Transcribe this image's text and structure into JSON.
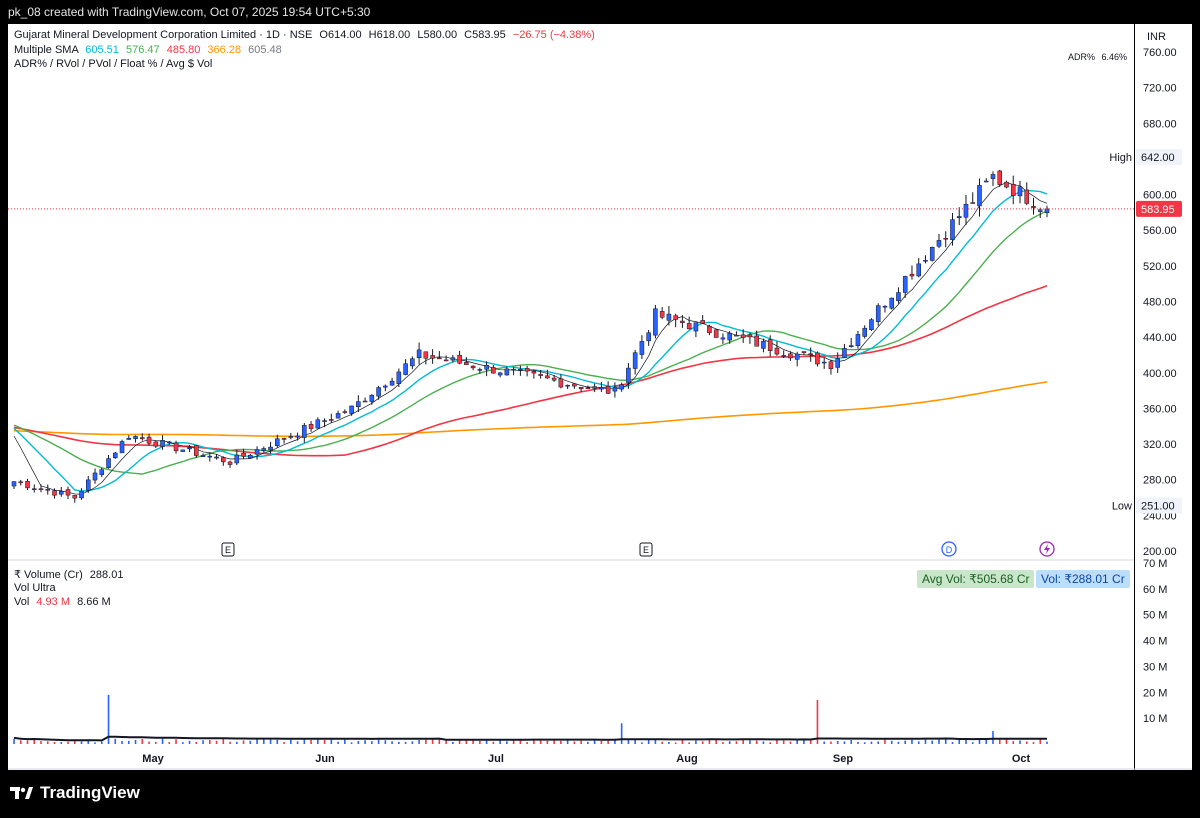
{
  "header": {
    "credit": "pk_08 created with TradingView.com, Oct 07, 2025 19:54 UTC+5:30"
  },
  "legend": {
    "symbol_line": "Gujarat Mineral Development Corporation Limited · 1D · NSE",
    "ohlc": {
      "o": "O614.00",
      "h": "H618.00",
      "l": "L580.00",
      "c": "C583.95",
      "chg": "−26.75 (−4.38%)"
    },
    "sma_label": "Multiple SMA",
    "sma_values": [
      {
        "value": "605.51",
        "color": "#00bcd4"
      },
      {
        "value": "576.47",
        "color": "#4caf50"
      },
      {
        "value": "485.80",
        "color": "#f23645"
      },
      {
        "value": "366.28",
        "color": "#ff9800"
      },
      {
        "value": "605.48",
        "color": "#787b86"
      }
    ],
    "indicator_line": "ADR% / RVol / PVol / Float % / Avg $ Vol",
    "adr_label": "ADR%",
    "adr_value": "6.46%"
  },
  "currency": "INR",
  "price_axis": {
    "ticks": [
      "760.00",
      "720.00",
      "680.00",
      "640.00",
      "600.00",
      "560.00",
      "520.00",
      "480.00",
      "440.00",
      "400.00",
      "360.00",
      "320.00",
      "280.00",
      "240.00",
      "200.00"
    ],
    "high_label": "High",
    "high_value": "642.00",
    "low_label": "Low",
    "low_value": "251.00",
    "last_value": "583.95"
  },
  "volume_pane": {
    "title": "₹ Volume (Cr)",
    "title_value": "288.01",
    "vol_ultra": "Vol Ultra",
    "vol_label": "Vol",
    "vol_value_1": "4.93 M",
    "vol_value_2": "8.66 M",
    "avg_badge": "Avg Vol: ₹505.68 Cr",
    "vol_badge": "Vol: ₹288.01 Cr",
    "ticks": [
      "70 M",
      "60 M",
      "50 M",
      "40 M",
      "30 M",
      "20 M",
      "10 M"
    ]
  },
  "time_axis": {
    "labels": [
      "May",
      "Jun",
      "Jul",
      "Aug",
      "Sep",
      "Oct"
    ]
  },
  "events": {
    "earnings_label": "E",
    "dividend_label": "D"
  },
  "brand": "TradingView",
  "colors": {
    "up": "#2962ff",
    "down": "#f23645",
    "sma5": "#131722",
    "sma10": "#00bcd4",
    "sma20": "#4caf50",
    "sma50": "#f23645",
    "sma200": "#ff9800"
  },
  "chart_data": {
    "type": "candlestick",
    "title": "Gujarat Mineral Development Corporation Limited · 1D · NSE",
    "y_range": [
      200,
      760
    ],
    "volume_range_millions": [
      0,
      70
    ],
    "x_axis_months": [
      "May",
      "Jun",
      "Jul",
      "Aug",
      "Sep",
      "Oct"
    ],
    "phases": [
      {
        "from": "Apr",
        "to": "mid-Apr",
        "price_from": 280,
        "price_to": 260
      },
      {
        "from": "mid-Apr",
        "to": "late-Apr",
        "price_from": 260,
        "price_to": 330
      },
      {
        "from": "late-Apr",
        "to": "mid-May",
        "price_from": 330,
        "price_to": 300
      },
      {
        "from": "mid-May",
        "to": "early-Jun",
        "price_from": 300,
        "price_to": 360
      },
      {
        "from": "early-Jun",
        "to": "mid-Jun",
        "price_from": 360,
        "price_to": 420
      },
      {
        "from": "mid-Jun",
        "to": "late-Jul",
        "price_from": 420,
        "price_to": 378
      },
      {
        "from": "late-Jul",
        "to": "end-Jul",
        "price_from": 378,
        "price_to": 465
      },
      {
        "from": "end-Jul",
        "to": "early-Sep",
        "price_from": 465,
        "price_to": 410
      },
      {
        "from": "early-Sep",
        "to": "late-Sep",
        "price_from": 410,
        "price_to": 620
      },
      {
        "from": "late-Sep",
        "to": "Oct 07",
        "price_from": 620,
        "price_to": 583.95
      }
    ],
    "high": 642.0,
    "low": 251.0,
    "last_close": 583.95
  }
}
